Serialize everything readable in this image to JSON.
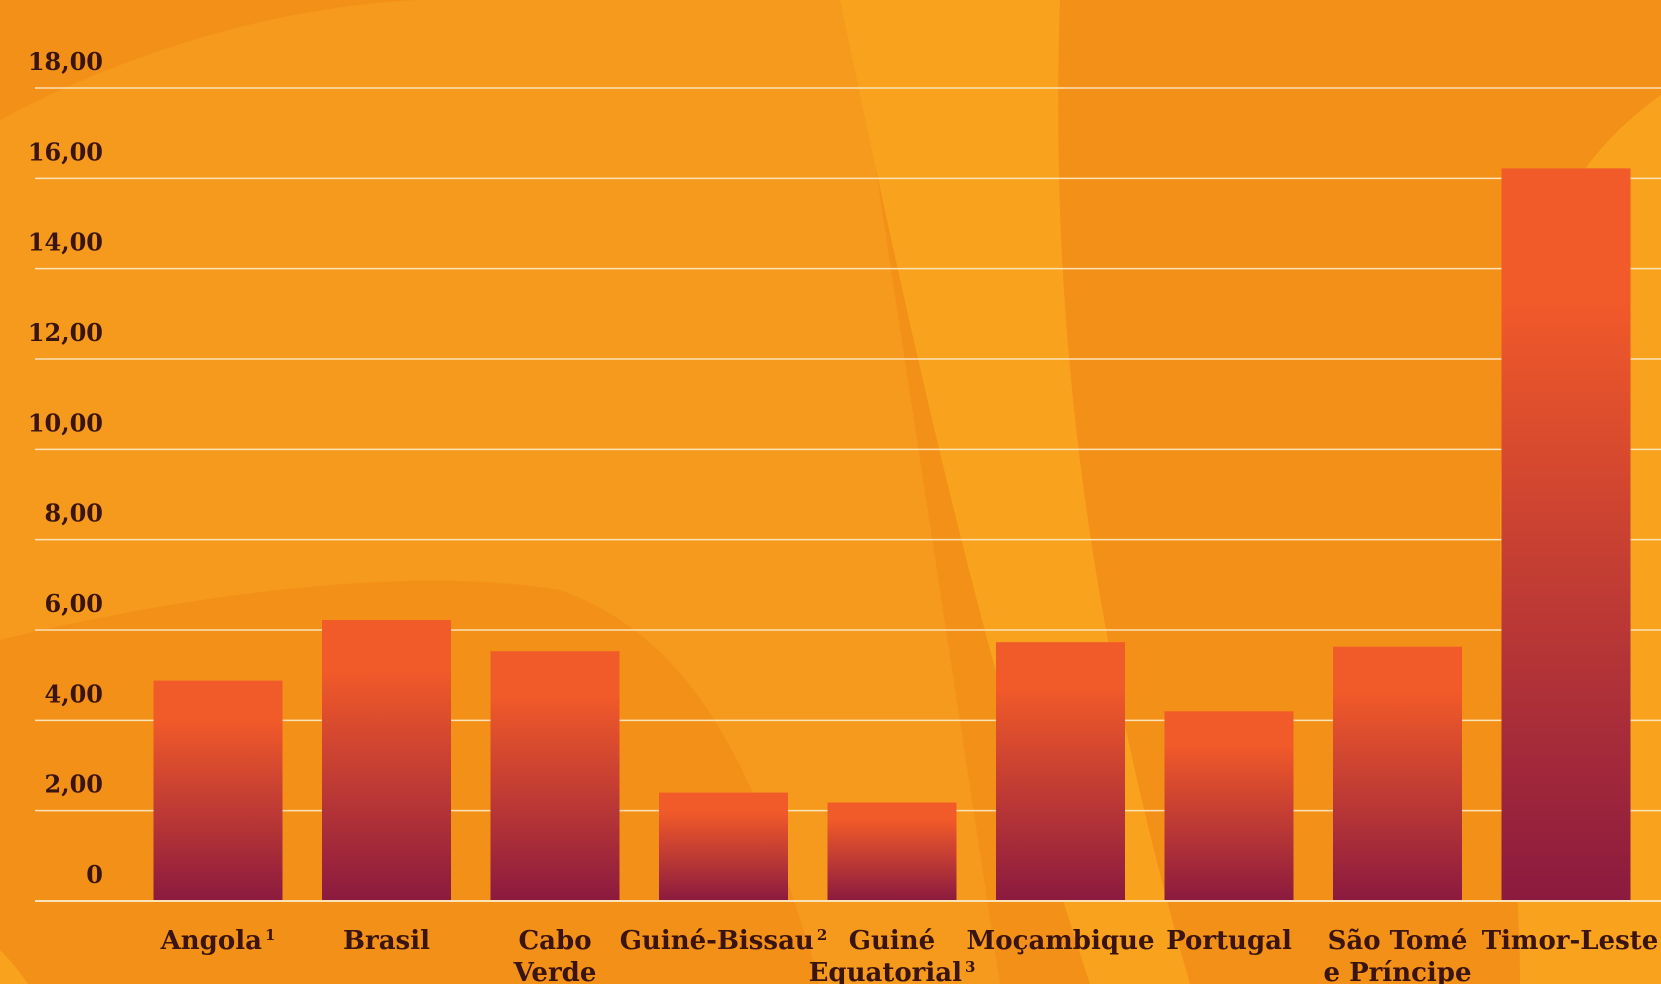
{
  "colors": {
    "background": "#f39018",
    "background_light": "#f8a21e",
    "background_mid": "#f59a1c",
    "gridline": "#fbe3b8",
    "bar_top": "#f15a29",
    "bar_bottom": "#8b1a3f",
    "text": "#3a1410"
  },
  "chart_data": {
    "type": "bar",
    "title": "",
    "xlabel": "",
    "ylabel": "",
    "ylim": [
      0,
      18
    ],
    "yticks": [
      0,
      2,
      4,
      6,
      8,
      10,
      12,
      14,
      16,
      18
    ],
    "ytick_labels": [
      "0",
      "2,00",
      "4,00",
      "6,00",
      "8,00",
      "10,00",
      "12,00",
      "14,00",
      "16,00",
      "18,00"
    ],
    "grid": "horizontal",
    "categories": [
      {
        "name": "Angola",
        "sup": "1"
      },
      {
        "name": "Brasil",
        "sup": ""
      },
      {
        "name": "Cabo Verde",
        "sup": ""
      },
      {
        "name": "Guiné-Bissau",
        "sup": "2"
      },
      {
        "name": "Guiné Equatorial",
        "sup": "3"
      },
      {
        "name": "Moçambique",
        "sup": ""
      },
      {
        "name": "Portugal",
        "sup": ""
      },
      {
        "name": "São Tomé e Príncipe",
        "sup": ""
      },
      {
        "name": "Timor-Leste",
        "sup": ""
      }
    ],
    "values": [
      4.88,
      6.22,
      5.53,
      2.4,
      2.18,
      5.73,
      4.2,
      5.63,
      16.22
    ]
  }
}
